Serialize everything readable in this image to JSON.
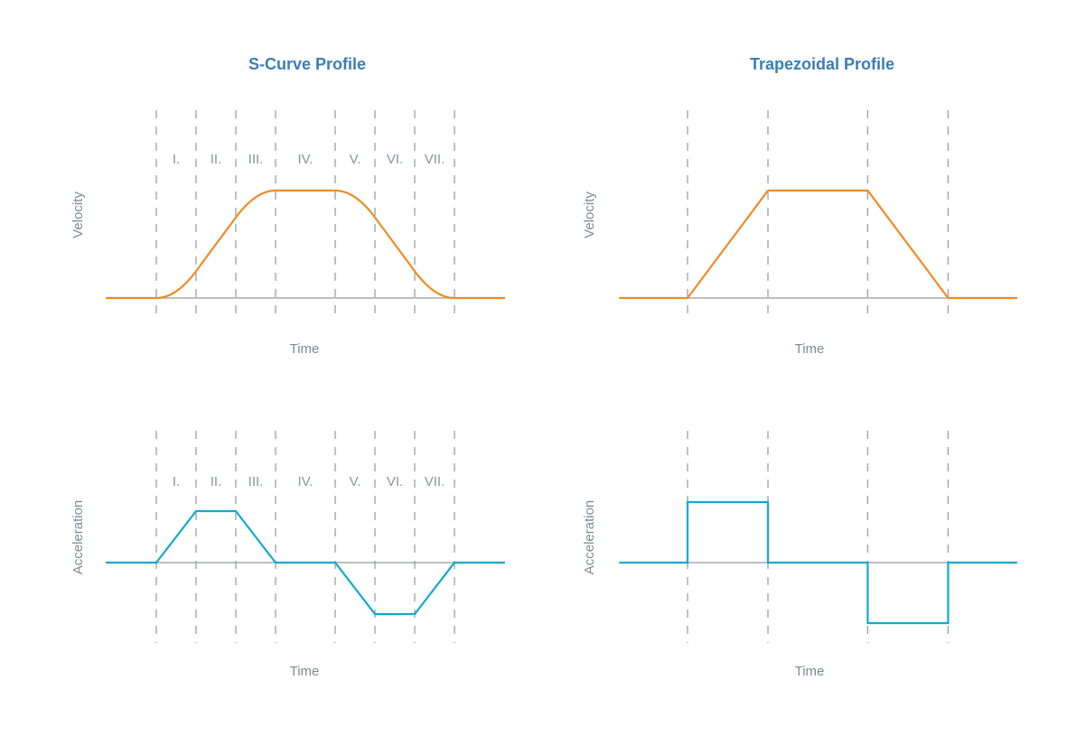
{
  "colors": {
    "velocity": "#ef8c24",
    "acceleration": "#12a9d0",
    "baseline": "#a7aaae",
    "boundary": "#9aa0a6",
    "title": "#3a7db5",
    "label": "#7d8a96"
  },
  "panels": [
    {
      "title": "S-Curve Profile",
      "phase_labels": [
        "I.",
        "II.",
        "III.",
        "IV.",
        "V.",
        "VI.",
        "VII."
      ],
      "phase_boundaries": [
        0,
        1,
        2,
        3,
        4.5,
        5.5,
        6.5,
        7.5
      ],
      "time_range": [
        -1.27,
        8.77
      ],
      "velocity": {
        "ylabel": "Velocity",
        "xlabel": "Time",
        "values_at_boundaries": [
          0,
          0.25,
          0.75,
          1,
          1,
          0.75,
          0.25,
          0
        ]
      },
      "acceleration": {
        "ylabel": "Acceleration",
        "xlabel": "Time",
        "points": [
          [
            -1.27,
            0
          ],
          [
            0,
            0
          ],
          [
            1,
            1
          ],
          [
            2,
            1
          ],
          [
            3,
            0
          ],
          [
            4.5,
            0
          ],
          [
            5.5,
            -1
          ],
          [
            6.5,
            -1
          ],
          [
            7.5,
            0
          ],
          [
            8.77,
            0
          ]
        ]
      }
    },
    {
      "title": "Trapezoidal Profile",
      "phase_labels": [],
      "phase_boundaries": [
        0,
        1,
        2.24,
        3.24
      ],
      "time_range": [
        -0.85,
        4.1
      ],
      "velocity": {
        "ylabel": "Velocity",
        "xlabel": "Time",
        "points": [
          [
            -0.85,
            0
          ],
          [
            0,
            0
          ],
          [
            1,
            1
          ],
          [
            2.24,
            1
          ],
          [
            3.24,
            0
          ],
          [
            4.1,
            0
          ]
        ]
      },
      "acceleration": {
        "ylabel": "Acceleration",
        "xlabel": "Time",
        "points": [
          [
            -0.85,
            0
          ],
          [
            0,
            0
          ],
          [
            0,
            1
          ],
          [
            1,
            1
          ],
          [
            1,
            0
          ],
          [
            2.24,
            0
          ],
          [
            2.24,
            -1
          ],
          [
            3.24,
            -1
          ],
          [
            3.24,
            0
          ],
          [
            4.1,
            0
          ]
        ]
      }
    }
  ]
}
